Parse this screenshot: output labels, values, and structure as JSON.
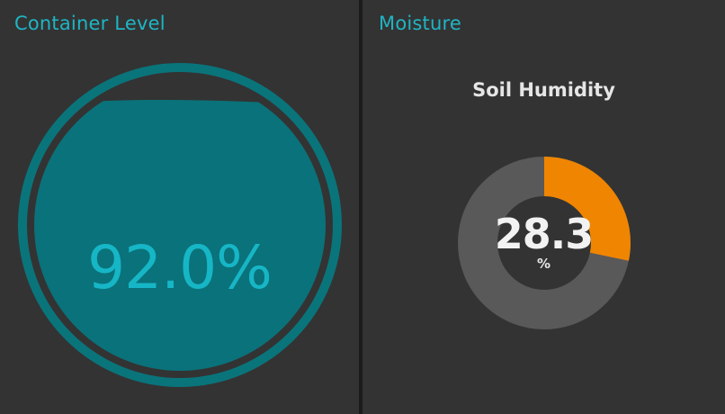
{
  "container_level": {
    "title": "Container Level",
    "value_text": "92.0%",
    "fill_percent": 92.0,
    "colors": {
      "ring": "#0a747b",
      "fill": "#0a727a",
      "text": "#16b6c6"
    }
  },
  "moisture": {
    "title": "Moisture",
    "gauge_title": "Soil Humidity",
    "value_text": "28.3",
    "value": 28.3,
    "unit": "%",
    "max": 100,
    "colors": {
      "active": "#ef8500",
      "track": "#595959",
      "text": "#f2f2f2"
    }
  },
  "theme": {
    "card_background": "#333333",
    "title_color": "#1fb5c4"
  }
}
